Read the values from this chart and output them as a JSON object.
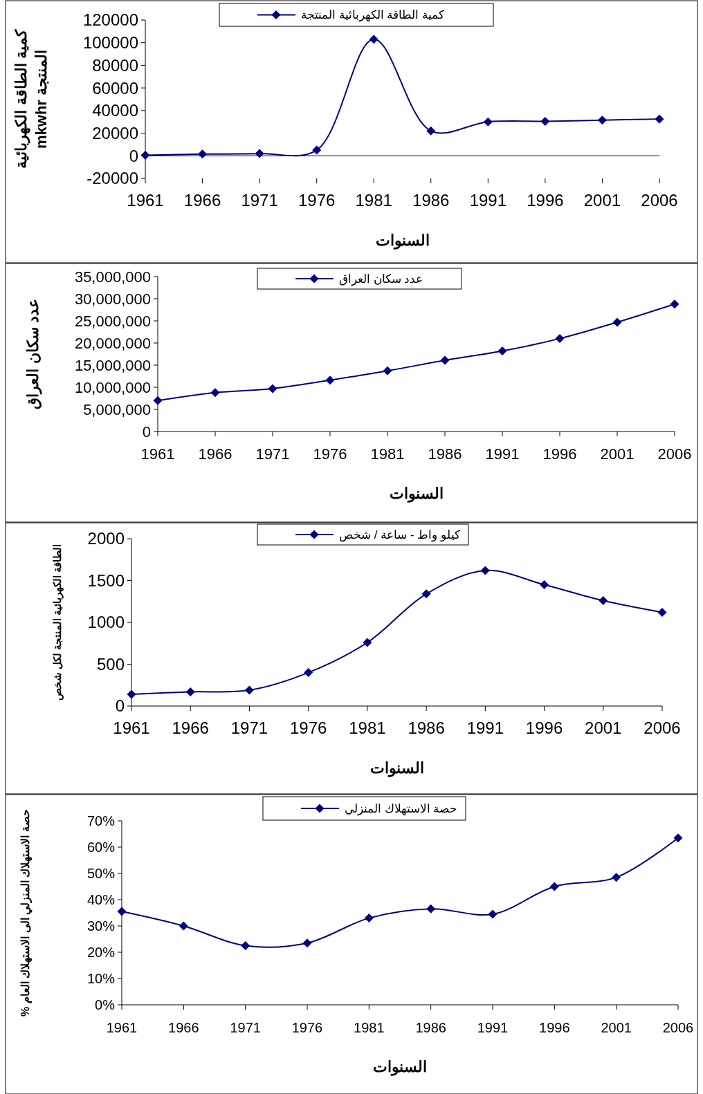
{
  "chart_data": [
    {
      "type": "line",
      "xlabel": "السنوات",
      "ylabel": "كمية الطاقة الكهربائية\nالمنتجة mkwhr",
      "categories": [
        "1961",
        "1966",
        "1971",
        "1976",
        "1981",
        "1986",
        "1991",
        "1996",
        "2001",
        "2006"
      ],
      "series": [
        {
          "name": "كمية الطاقة الكهربائية المنتجة",
          "color": "#000080",
          "values": [
            500,
            1500,
            2000,
            5000,
            103000,
            22000,
            30000,
            30500,
            31500,
            32500
          ]
        }
      ],
      "ylim": [
        -20000,
        120000
      ],
      "yticks": [
        -20000,
        0,
        20000,
        40000,
        60000,
        80000,
        100000,
        120000
      ],
      "marker": "diamond",
      "legend": "top",
      "grid": false
    },
    {
      "type": "line",
      "xlabel": "السنوات",
      "ylabel": "عدد سكان العراق",
      "categories": [
        "1961",
        "1966",
        "1971",
        "1976",
        "1981",
        "1986",
        "1991",
        "1996",
        "2001",
        "2006"
      ],
      "series": [
        {
          "name": "عدد سكان العراق",
          "color": "#000080",
          "values": [
            7000000,
            8800000,
            9700000,
            11600000,
            13700000,
            16100000,
            18200000,
            21000000,
            24700000,
            28800000
          ]
        }
      ],
      "ylim": [
        0,
        35000000
      ],
      "yticks": [
        0,
        {
          "value": 5000000,
          "label": "5,000,000"
        },
        {
          "value": 10000000,
          "label": "10,000,000"
        },
        {
          "value": 15000000,
          "label": "15,000,000"
        },
        {
          "value": 20000000,
          "label": "20,000,000"
        },
        {
          "value": 25000000,
          "label": "25,000,000"
        },
        {
          "value": 30000000,
          "label": "30,000,000"
        },
        {
          "value": 35000000,
          "label": "35,000,000"
        }
      ],
      "marker": "diamond",
      "legend": "top",
      "grid": false
    },
    {
      "type": "line",
      "xlabel": "السنوات",
      "ylabel": "الطاقة الكهربائية المنتجة لكل شخص",
      "categories": [
        "1961",
        "1966",
        "1971",
        "1976",
        "1981",
        "1986",
        "1991",
        "1996",
        "2001",
        "2006"
      ],
      "series": [
        {
          "name": "كيلو واط - ساعة / شخص",
          "color": "#000080",
          "values": [
            140,
            170,
            190,
            400,
            760,
            1340,
            1620,
            1450,
            1260,
            1120
          ]
        }
      ],
      "ylim": [
        0,
        2000
      ],
      "yticks": [
        0,
        500,
        1000,
        1500,
        2000
      ],
      "marker": "diamond",
      "legend": "top",
      "grid": false
    },
    {
      "type": "line",
      "xlabel": "السنوات",
      "ylabel": "حصة الاستهلاك المنزلي الى الاستهلاك العام %",
      "categories": [
        "1961",
        "1966",
        "1971",
        "1976",
        "1981",
        "1986",
        "1991",
        "1996",
        "2001",
        "2006"
      ],
      "series": [
        {
          "name": "حصة الاستهلاك المنزلي",
          "color": "#000080",
          "values": [
            35.5,
            30,
            22.5,
            23.5,
            33,
            36.5,
            34.5,
            45,
            48.5,
            63.5
          ]
        }
      ],
      "ylim": [
        0,
        70
      ],
      "yticks": [
        {
          "value": 0,
          "label": "0%"
        },
        {
          "value": 10,
          "label": "10%"
        },
        {
          "value": 20,
          "label": "20%"
        },
        {
          "value": 30,
          "label": "30%"
        },
        {
          "value": 40,
          "label": "40%"
        },
        {
          "value": 50,
          "label": "50%"
        },
        {
          "value": 60,
          "label": "60%"
        },
        {
          "value": 70,
          "label": "70%"
        }
      ],
      "marker": "diamond",
      "legend": "top",
      "grid": false
    }
  ]
}
